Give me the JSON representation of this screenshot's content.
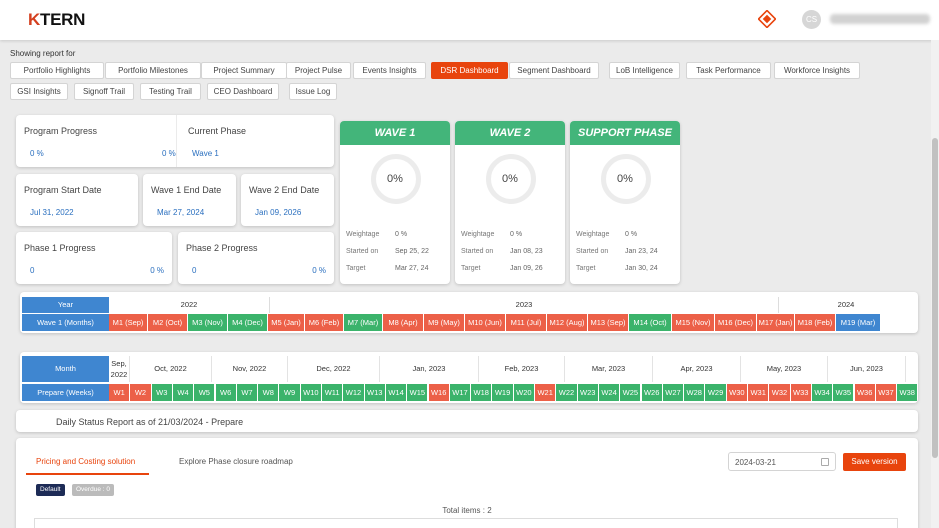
{
  "header": {
    "logo_k": "K",
    "logo_rest": "TERN",
    "avatar_initials": "CS"
  },
  "showing_label": "Showing report for",
  "report_tabs": [
    {
      "label": "Portfolio Highlights",
      "active": false
    },
    {
      "label": "Portfolio Milestones",
      "active": false
    },
    {
      "label": "Project Summary",
      "active": false
    },
    {
      "label": "Project Pulse",
      "active": false
    },
    {
      "label": "Events Insights",
      "active": false
    },
    {
      "label": "DSR Dashboard",
      "active": true
    },
    {
      "label": "Segment Dashboard",
      "active": false
    },
    {
      "label": "LoB Intelligence",
      "active": false
    },
    {
      "label": "Task Performance",
      "active": false
    },
    {
      "label": "Workforce Insights",
      "active": false
    },
    {
      "label": "GSI Insights",
      "active": false
    },
    {
      "label": "Signoff Trail",
      "active": false
    },
    {
      "label": "Testing Trail",
      "active": false
    },
    {
      "label": "CEO Dashboard",
      "active": false
    },
    {
      "label": "Issue Log",
      "active": false
    }
  ],
  "cards": {
    "program_progress": {
      "title": "Program Progress",
      "v1": "0 %",
      "v2": "0 %"
    },
    "current_phase": {
      "title": "Current Phase",
      "v1": "Wave 1"
    },
    "start_date": {
      "title": "Program Start Date",
      "v1": "Jul 31, 2022"
    },
    "wave1_end": {
      "title": "Wave 1 End Date",
      "v1": "Mar 27, 2024"
    },
    "wave2_end": {
      "title": "Wave 2 End Date",
      "v1": "Jan 09, 2026"
    },
    "phase1": {
      "title": "Phase 1 Progress",
      "v1": "0",
      "v2": "0 %"
    },
    "phase2": {
      "title": "Phase 2 Progress",
      "v1": "0",
      "v2": "0 %"
    }
  },
  "waves": [
    {
      "title": "WAVE 1",
      "pct": "0%",
      "weightage_label": "Weightage",
      "weightage": "0 %",
      "started_label": "Started on",
      "started": "Sep 25, 22",
      "target_label": "Target",
      "target": "Mar 27, 24"
    },
    {
      "title": "WAVE 2",
      "pct": "0%",
      "weightage_label": "Weightage",
      "weightage": "0 %",
      "started_label": "Started on",
      "started": "Jan 08, 23",
      "target_label": "Target",
      "target": "Jan 09, 26"
    },
    {
      "title": "SUPPORT PHASE",
      "pct": "0%",
      "weightage_label": "Weightage",
      "weightage": "0 %",
      "started_label": "Started on",
      "started": "Jan 23, 24",
      "target_label": "Target",
      "target": "Jan 30, 24"
    }
  ],
  "timeline1": {
    "year_header": "Year",
    "row_header": "Wave 1 (Months)",
    "years": [
      "2022",
      "2023",
      "2024"
    ],
    "months": [
      {
        "label": "M1 (Sep)",
        "status": "red"
      },
      {
        "label": "M2 (Oct)",
        "status": "red"
      },
      {
        "label": "M3 (Nov)",
        "status": "green"
      },
      {
        "label": "M4 (Dec)",
        "status": "green"
      },
      {
        "label": "M5 (Jan)",
        "status": "red"
      },
      {
        "label": "M6 (Feb)",
        "status": "red"
      },
      {
        "label": "M7 (Mar)",
        "status": "green"
      },
      {
        "label": "M8 (Apr)",
        "status": "red"
      },
      {
        "label": "M9 (May)",
        "status": "red"
      },
      {
        "label": "M10 (Jun)",
        "status": "red"
      },
      {
        "label": "M11 (Jul)",
        "status": "red"
      },
      {
        "label": "M12 (Aug)",
        "status": "red"
      },
      {
        "label": "M13 (Sep)",
        "status": "red"
      },
      {
        "label": "M14 (Oct)",
        "status": "green"
      },
      {
        "label": "M15 (Nov)",
        "status": "red"
      },
      {
        "label": "M16 (Dec)",
        "status": "red"
      },
      {
        "label": "M17 (Jan)",
        "status": "red"
      },
      {
        "label": "M18 (Feb)",
        "status": "red"
      },
      {
        "label": "M19 (Mar)",
        "status": "blue"
      }
    ]
  },
  "timeline2": {
    "month_header": "Month",
    "row_header": "Prepare (Weeks)",
    "months": [
      "Sep, 2022",
      "Oct, 2022",
      "Nov, 2022",
      "Dec, 2022",
      "Jan, 2023",
      "Feb, 2023",
      "Mar, 2023",
      "Apr, 2023",
      "May, 2023",
      "Jun, 2023"
    ],
    "weeks": [
      {
        "label": "W1",
        "status": "red"
      },
      {
        "label": "W2",
        "status": "red"
      },
      {
        "label": "W3",
        "status": "green"
      },
      {
        "label": "W4",
        "status": "green"
      },
      {
        "label": "W5",
        "status": "green"
      },
      {
        "label": "W6",
        "status": "green"
      },
      {
        "label": "W7",
        "status": "green"
      },
      {
        "label": "W8",
        "status": "green"
      },
      {
        "label": "W9",
        "status": "green"
      },
      {
        "label": "W10",
        "status": "green"
      },
      {
        "label": "W11",
        "status": "green"
      },
      {
        "label": "W12",
        "status": "green"
      },
      {
        "label": "W13",
        "status": "green"
      },
      {
        "label": "W14",
        "status": "green"
      },
      {
        "label": "W15",
        "status": "green"
      },
      {
        "label": "W16",
        "status": "red"
      },
      {
        "label": "W17",
        "status": "green"
      },
      {
        "label": "W18",
        "status": "green"
      },
      {
        "label": "W19",
        "status": "green"
      },
      {
        "label": "W20",
        "status": "green"
      },
      {
        "label": "W21",
        "status": "red"
      },
      {
        "label": "W22",
        "status": "green"
      },
      {
        "label": "W23",
        "status": "green"
      },
      {
        "label": "W24",
        "status": "green"
      },
      {
        "label": "W25",
        "status": "green"
      },
      {
        "label": "W26",
        "status": "green"
      },
      {
        "label": "W27",
        "status": "green"
      },
      {
        "label": "W28",
        "status": "green"
      },
      {
        "label": "W29",
        "status": "green"
      },
      {
        "label": "W30",
        "status": "red"
      },
      {
        "label": "W31",
        "status": "red"
      },
      {
        "label": "W32",
        "status": "red"
      },
      {
        "label": "W33",
        "status": "red"
      },
      {
        "label": "W34",
        "status": "green"
      },
      {
        "label": "W35",
        "status": "green"
      },
      {
        "label": "W36",
        "status": "red"
      },
      {
        "label": "W37",
        "status": "red"
      },
      {
        "label": "W38",
        "status": "green"
      },
      {
        "label": "W",
        "status": "green"
      }
    ]
  },
  "dsr": {
    "title": "Daily Status Report as of 21/03/2024 - Prepare"
  },
  "subtabs": [
    "Pricing and Costing solution",
    "Explore Phase closure roadmap"
  ],
  "date_value": "2024-03-21",
  "save_label": "Save version",
  "badges": {
    "default": "Default",
    "overdue": "Overdue : 0"
  },
  "total_items": "Total items : 2",
  "colors": {
    "accent": "#e8440d",
    "green": "#3bb36b",
    "red": "#ec6048",
    "blue": "#3f86d0"
  }
}
